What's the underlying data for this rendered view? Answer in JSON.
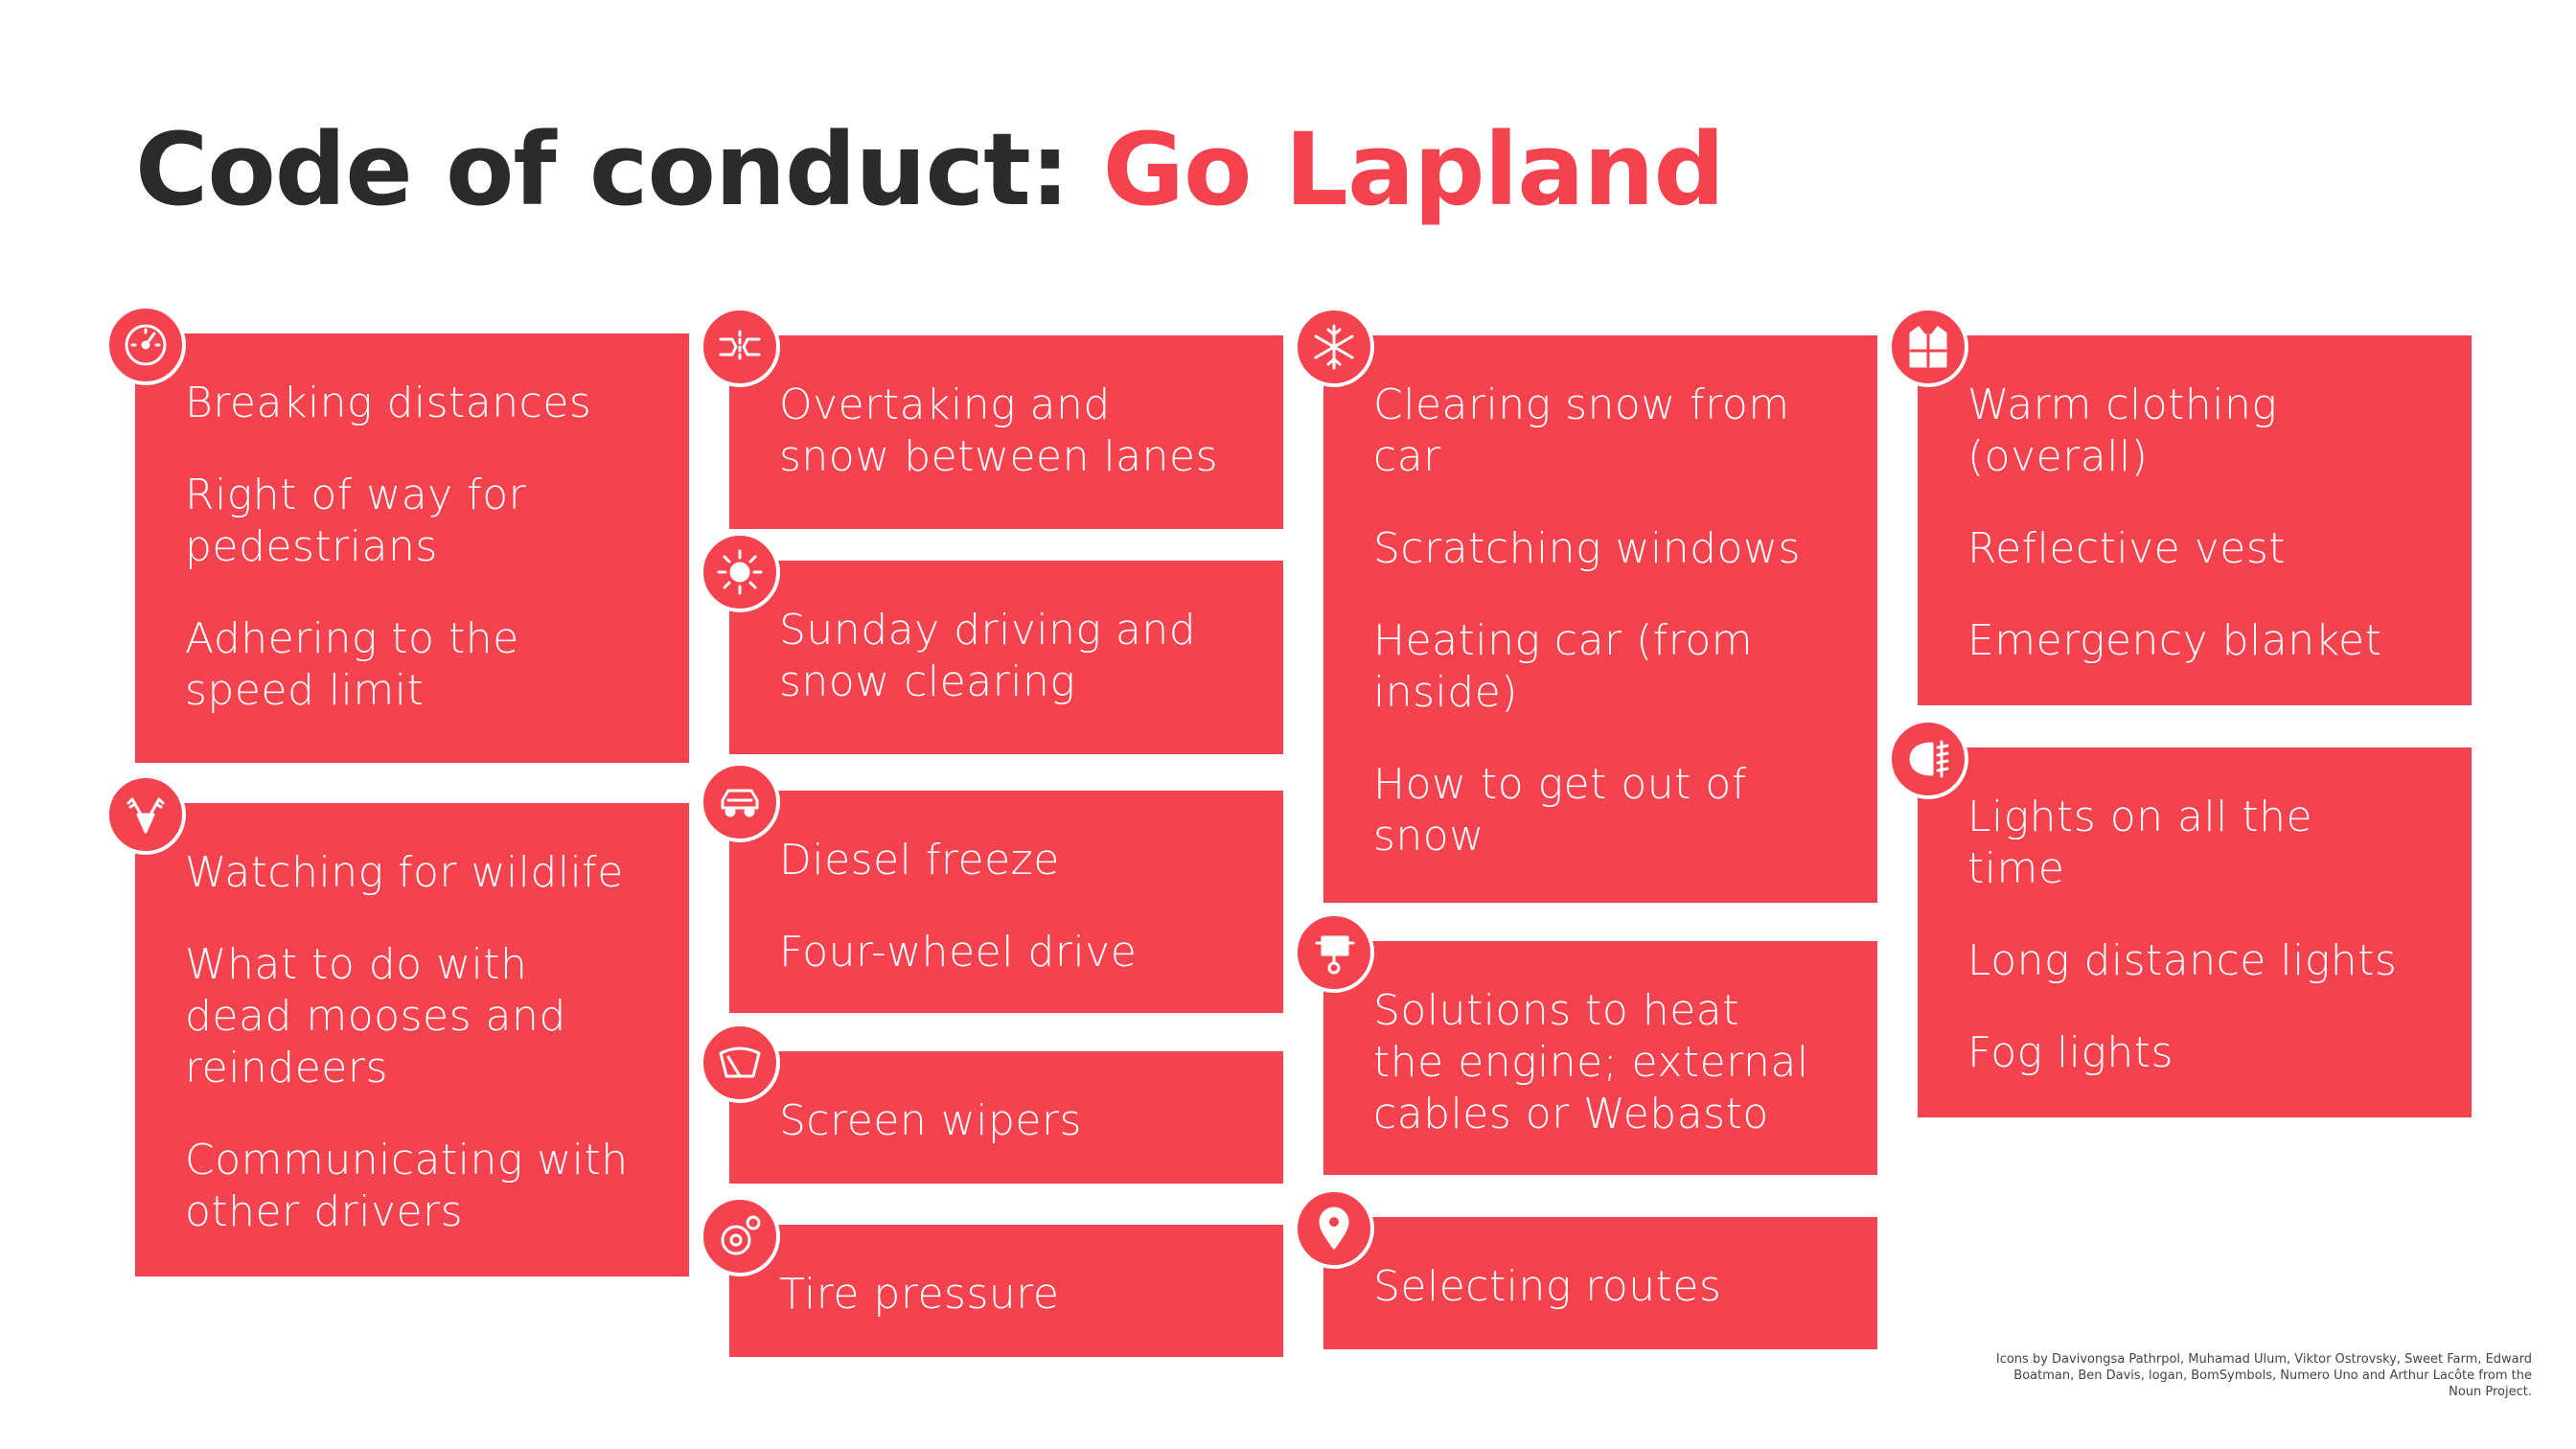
{
  "title": {
    "prefix": "Code of conduct:",
    "highlight": "Go Lapland"
  },
  "colors": {
    "accent": "#f5424f",
    "title": "#2b2b2b",
    "card_text": "#ffffff"
  },
  "cards": [
    {
      "icon": "speedometer-icon",
      "items": [
        "Breaking distances",
        "Right of way for\npedestrians",
        "Adhering to the\nspeed limit"
      ]
    },
    {
      "icon": "reindeer-icon",
      "items": [
        "Watching for wildlife",
        "What to do with\ndead mooses and\nreindeers",
        "Communicating with\nother drivers"
      ]
    },
    {
      "icon": "overtaking-cars-icon",
      "items": [
        "Overtaking and\nsnow between lanes"
      ]
    },
    {
      "icon": "sun-icon",
      "items": [
        "Sunday driving and\nsnow clearing"
      ]
    },
    {
      "icon": "car-icon",
      "items": [
        "Diesel freeze",
        "Four-wheel drive"
      ]
    },
    {
      "icon": "windshield-wiper-icon",
      "items": [
        "Screen wipers"
      ]
    },
    {
      "icon": "tire-pressure-icon",
      "items": [
        "Tire pressure"
      ]
    },
    {
      "icon": "snowflake-icon",
      "items": [
        "Clearing snow from\ncar",
        "Scratching windows",
        "Heating car (from\ninside)",
        "How to get out of\nsnow"
      ]
    },
    {
      "icon": "engine-heater-icon",
      "items": [
        "Solutions to heat\nthe engine; external\ncables or Webasto"
      ]
    },
    {
      "icon": "map-pin-icon",
      "items": [
        "Selecting routes"
      ]
    },
    {
      "icon": "reflective-vest-icon",
      "items": [
        "Warm clothing\n(overall)",
        "Reflective vest",
        "Emergency blanket"
      ]
    },
    {
      "icon": "headlight-icon",
      "items": [
        "Lights on all the\ntime",
        "Long distance lights",
        "Fog lights"
      ]
    }
  ],
  "credits": "Icons by Davivongsa Pathrpol, Muhamad Ulum, Viktor Ostrovsky, Sweet Farm, Edward Boatman, Ben Davis, logan, BomSymbols, Numero Uno and Arthur Lacôte from the Noun Project."
}
